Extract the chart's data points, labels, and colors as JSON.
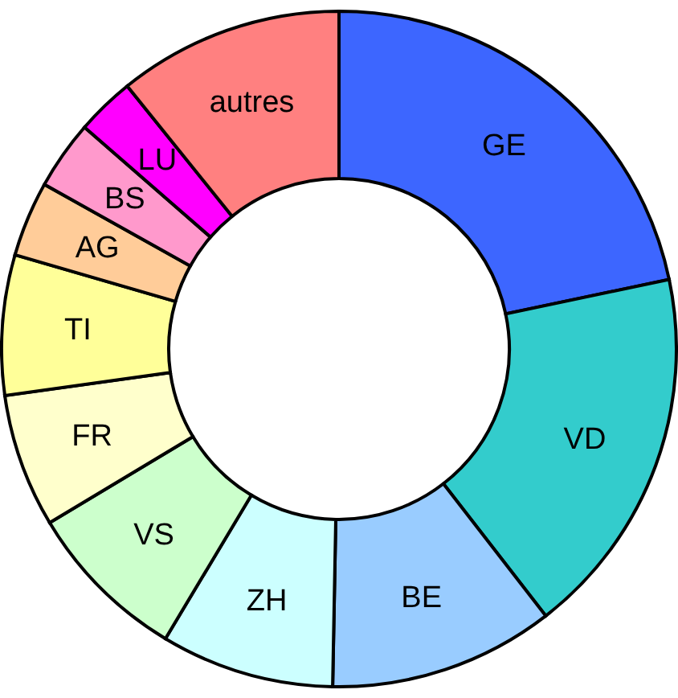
{
  "chart_data": {
    "type": "donut",
    "categories": [
      "GE",
      "VD",
      "BE",
      "ZH",
      "VS",
      "FR",
      "TI",
      "AG",
      "BS",
      "LU",
      "autres"
    ],
    "values": [
      21.7,
      17.8,
      10.8,
      8.3,
      7.8,
      6.4,
      6.7,
      3.6,
      3.3,
      2.8,
      10.8
    ],
    "colors": [
      "#3d66ff",
      "#33cccc",
      "#99ccff",
      "#ccffff",
      "#ccffcc",
      "#ffffcc",
      "#ffff99",
      "#ffcc99",
      "#ff99cc",
      "#ff00ff",
      "#ff8080"
    ]
  }
}
